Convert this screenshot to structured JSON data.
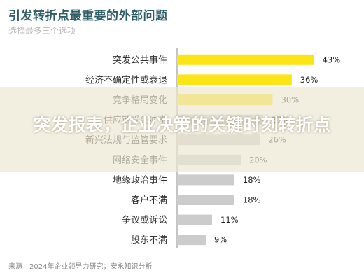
{
  "headline": "突发报表，企业决策的关键时刻转折点",
  "chart_data": {
    "type": "bar",
    "orientation": "horizontal",
    "title": "引发转折点最重要的外部问题",
    "subtitle": "选择最多三个选项",
    "source": "来源：2024年企业领导力研究；安永知识分析",
    "categories": [
      "突发公共事件",
      "经济不确定性或衰退",
      "竞争格局变化",
      "供应链受到冲击",
      "新兴法规与监管要求",
      "网络安全事件",
      "地缘政治事件",
      "客户不满",
      "争议或诉讼",
      "股东不满"
    ],
    "values": [
      43,
      36,
      30,
      27,
      26,
      20,
      18,
      18,
      11,
      9
    ],
    "value_labels": [
      "43%",
      "36%",
      "30%",
      "27%",
      "26%",
      "20%",
      "18%",
      "18%",
      "11%",
      "9%"
    ],
    "highlight_count": 3,
    "colors": {
      "highlight": "#fce516",
      "default": "#cccccc",
      "axis": "#888888"
    },
    "xlim": [
      0,
      50
    ],
    "grid": false,
    "legend": "none"
  }
}
